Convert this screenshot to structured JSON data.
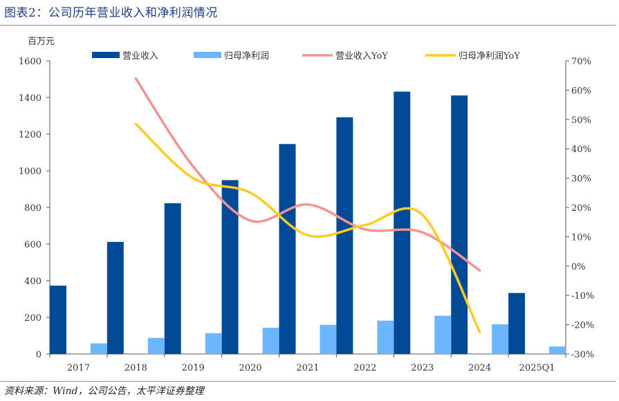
{
  "header": {
    "title": "图表2：公司历年营业收入和净利润情况"
  },
  "footer": {
    "source": "资料来源：Wind，公司公告，太平洋证券整理"
  },
  "chart_data": {
    "type": "bar+line",
    "title": "",
    "y_unit_label": "百万元",
    "categories": [
      "2017",
      "2018",
      "2019",
      "2020",
      "2021",
      "2022",
      "2023",
      "2024",
      "2025Q1"
    ],
    "ylim_left": [
      0,
      1600
    ],
    "yticks_left": [
      0,
      200,
      400,
      600,
      800,
      1000,
      1200,
      1400,
      1600
    ],
    "ylim_right": [
      -30,
      70
    ],
    "yticks_right": [
      "-30%",
      "-20%",
      "-10%",
      "0%",
      "10%",
      "20%",
      "30%",
      "40%",
      "50%",
      "60%",
      "70%"
    ],
    "legend_position": "top",
    "grid": false,
    "bar_series": [
      {
        "name": "营业收入",
        "color": "#004a97",
        "values": [
          373,
          612,
          823,
          949,
          1146,
          1292,
          1432,
          1411,
          333
        ]
      },
      {
        "name": "归母净利润",
        "color": "#6bb6ff",
        "values": [
          58,
          88,
          113,
          143,
          159,
          182,
          209,
          162,
          41
        ]
      }
    ],
    "line_series": [
      {
        "name": "营业收入YoY",
        "color": "#f4938f",
        "values": [
          null,
          64,
          34,
          15.5,
          21,
          12.5,
          11.5,
          -1.5,
          null
        ]
      },
      {
        "name": "归母净利润YoY",
        "color": "#ffcc22",
        "values": [
          null,
          48.5,
          30,
          25,
          10.5,
          14,
          17.5,
          -22.5,
          null
        ]
      }
    ]
  }
}
